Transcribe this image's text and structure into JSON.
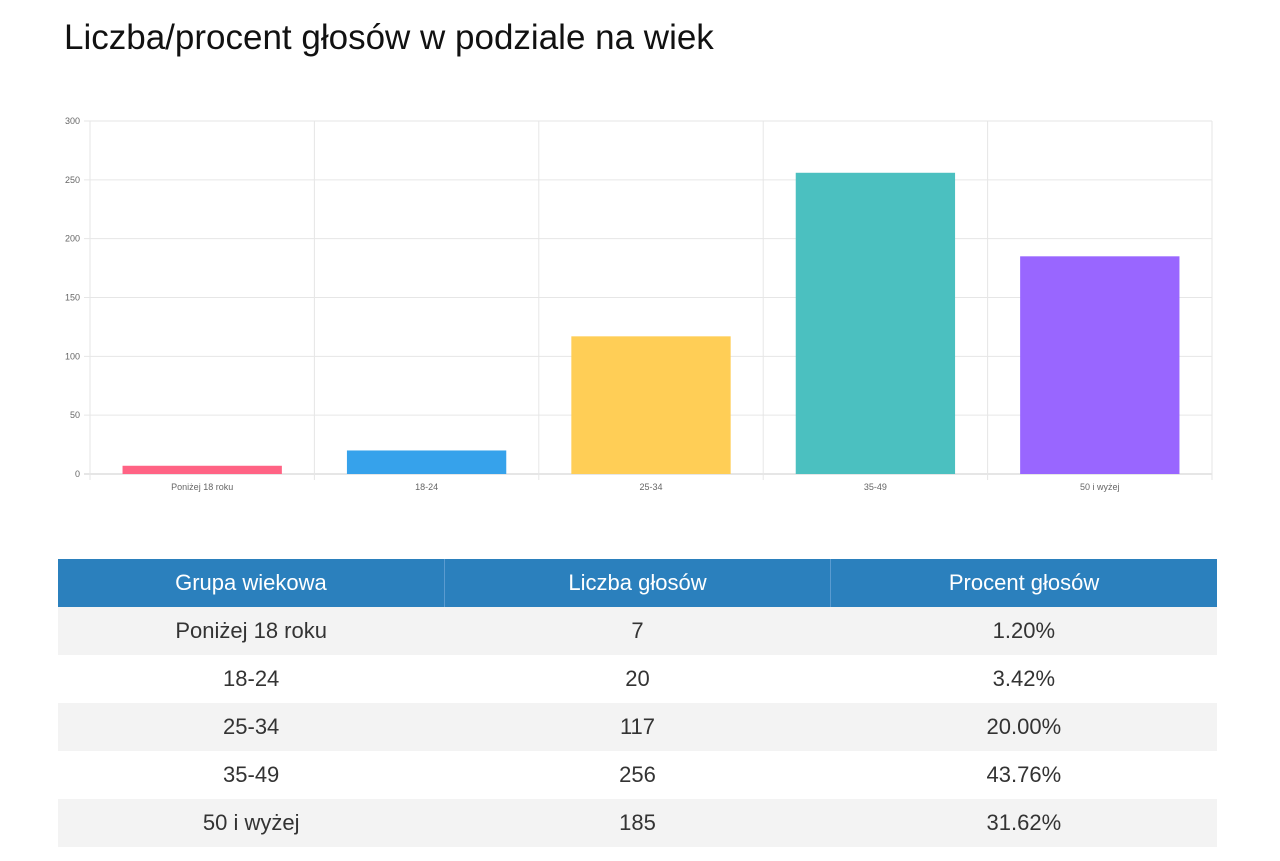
{
  "page": {
    "title": "Liczba/procent głosów w podziale na wiek"
  },
  "chart_data": {
    "type": "bar",
    "title": "",
    "xlabel": "",
    "ylabel": "",
    "categories": [
      "Poniżej 18 roku",
      "18-24",
      "25-34",
      "35-49",
      "50 i wyżej"
    ],
    "values": [
      7,
      20,
      117,
      256,
      185
    ],
    "colors": [
      "#ff6384",
      "#36a2eb",
      "#ffce56",
      "#4bc0c0",
      "#9966ff"
    ],
    "ylim": [
      0,
      300
    ],
    "yticks": [
      0,
      50,
      100,
      150,
      200,
      250,
      300
    ],
    "grid": true,
    "legend": "none"
  },
  "table": {
    "headers": [
      "Grupa wiekowa",
      "Liczba głosów",
      "Procent głosów"
    ],
    "rows": [
      [
        "Poniżej 18 roku",
        "7",
        "1.20%"
      ],
      [
        "18-24",
        "20",
        "3.42%"
      ],
      [
        "25-34",
        "117",
        "20.00%"
      ],
      [
        "35-49",
        "256",
        "43.76%"
      ],
      [
        "50 i wyżej",
        "185",
        "31.62%"
      ]
    ]
  },
  "colors": {
    "table_header_bg": "#2b80bd",
    "table_row_alt_bg": "#f3f3f3"
  }
}
